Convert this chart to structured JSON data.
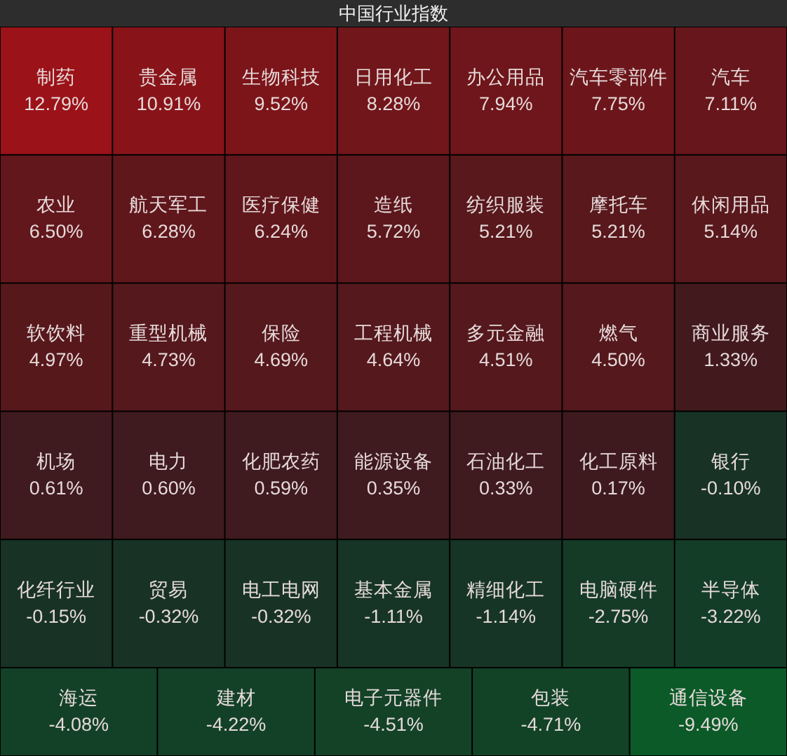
{
  "chart_data": {
    "type": "other",
    "title": "中国行业指数",
    "categories": [
      "制药",
      "贵金属",
      "生物科技",
      "日用化工",
      "办公用品",
      "汽车零部件",
      "汽车",
      "农业",
      "航天军工",
      "医疗保健",
      "造纸",
      "纺织服装",
      "摩托车",
      "休闲用品",
      "软饮料",
      "重型机械",
      "保险",
      "工程机械",
      "多元金融",
      "燃气",
      "商业服务",
      "机场",
      "电力",
      "化肥农药",
      "能源设备",
      "石油化工",
      "化工原料",
      "银行",
      "化纤行业",
      "贸易",
      "电工电网",
      "基本金属",
      "精细化工",
      "电脑硬件",
      "半导体",
      "海运",
      "建材",
      "电子元器件",
      "包装",
      "通信设备"
    ],
    "values": [
      12.79,
      10.91,
      9.52,
      8.28,
      7.94,
      7.75,
      7.11,
      6.5,
      6.28,
      6.24,
      5.72,
      5.21,
      5.21,
      5.14,
      4.97,
      4.73,
      4.69,
      4.64,
      4.51,
      4.5,
      1.33,
      0.61,
      0.6,
      0.59,
      0.35,
      0.33,
      0.17,
      -0.1,
      -0.15,
      -0.32,
      -0.32,
      -1.11,
      -1.14,
      -2.75,
      -3.22,
      -4.08,
      -4.22,
      -4.51,
      -4.71,
      -9.49
    ],
    "value_labels": [
      "12.79%",
      "10.91%",
      "9.52%",
      "8.28%",
      "7.94%",
      "7.75%",
      "7.11%",
      "6.50%",
      "6.28%",
      "6.24%",
      "5.72%",
      "5.21%",
      "5.21%",
      "5.14%",
      "4.97%",
      "4.73%",
      "4.69%",
      "4.64%",
      "4.51%",
      "4.50%",
      "1.33%",
      "0.61%",
      "0.60%",
      "0.59%",
      "0.35%",
      "0.33%",
      "0.17%",
      "-0.10%",
      "-0.15%",
      "-0.32%",
      "-0.32%",
      "-1.11%",
      "-1.14%",
      "-2.75%",
      "-3.22%",
      "-4.08%",
      "-4.22%",
      "-4.51%",
      "-4.71%",
      "-9.49%"
    ]
  }
}
